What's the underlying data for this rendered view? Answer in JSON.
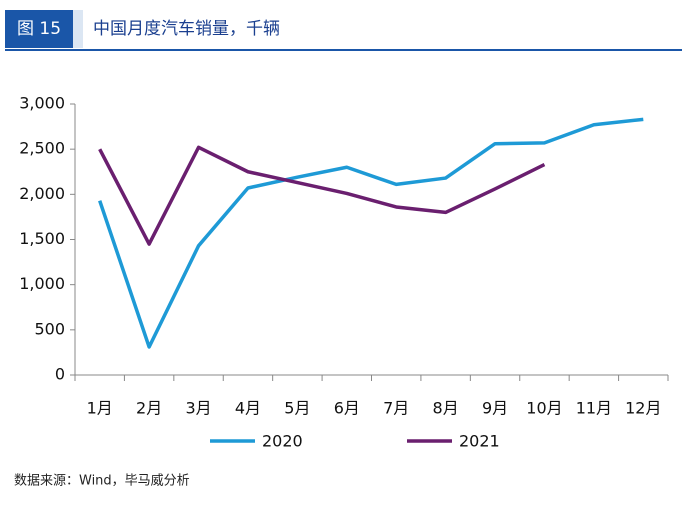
{
  "header": {
    "figure_label": "图 15",
    "title": "中国月度汽车销量，千辆"
  },
  "chart_data": {
    "type": "line",
    "categories": [
      "1月",
      "2月",
      "3月",
      "4月",
      "5月",
      "6月",
      "7月",
      "8月",
      "9月",
      "10月",
      "11月",
      "12月"
    ],
    "series": [
      {
        "name": "2020",
        "color": "#1e9ad6",
        "values": [
          1930,
          310,
          1430,
          2070,
          2190,
          2300,
          2110,
          2180,
          2560,
          2570,
          2770,
          2830
        ]
      },
      {
        "name": "2021",
        "color": "#6a1f6f",
        "values": [
          2500,
          1450,
          2520,
          2250,
          2130,
          2010,
          1860,
          1800,
          2060,
          2330,
          null,
          null
        ]
      }
    ],
    "ylim": [
      0,
      3000
    ],
    "yticks": [
      0,
      500,
      {
        "value": 1000,
        "label": "1,000"
      },
      {
        "value": 1500,
        "label": "1,500"
      },
      {
        "value": 2000,
        "label": "2,000"
      },
      {
        "value": 2500,
        "label": "2,500"
      },
      {
        "value": 3000,
        "label": "3,000"
      }
    ],
    "grid": false
  },
  "source": "数据来源：Wind，毕马威分析"
}
